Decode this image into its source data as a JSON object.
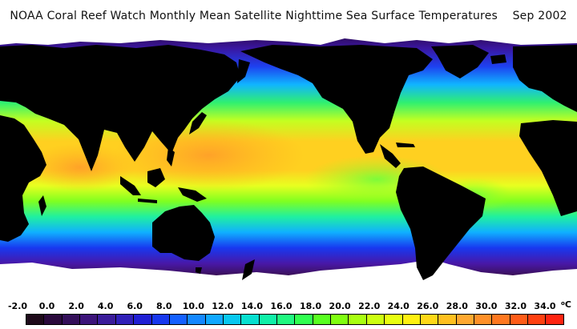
{
  "title": "NOAA Coral Reef Watch Monthly Mean Satellite Nighttime Sea Surface Temperatures    Sep 2002",
  "map": {
    "product": "Monthly Mean Nighttime SST",
    "month": "Sep 2002",
    "land_color": "#000000",
    "ice_color": "#ffffff"
  },
  "scale": {
    "tick_labels": [
      "-2.0",
      "0.0",
      "2.0",
      "4.0",
      "6.0",
      "8.0",
      "10.0",
      "12.0",
      "14.0",
      "16.0",
      "18.0",
      "20.0",
      "22.0",
      "24.0",
      "26.0",
      "28.0",
      "30.0",
      "32.0",
      "34.0"
    ],
    "unit_degree": "o",
    "unit_letter": "C",
    "colors": [
      "#1e0a1a",
      "#2a0a3c",
      "#34105a",
      "#3c147a",
      "#3a1c9a",
      "#3020b8",
      "#2020d4",
      "#1838ee",
      "#1460ff",
      "#1488ff",
      "#10a8ff",
      "#08c8f0",
      "#08e0d0",
      "#10f0a8",
      "#20f880",
      "#30ff50",
      "#58ff20",
      "#80ff10",
      "#a8ff10",
      "#ccff10",
      "#e8ff10",
      "#fff010",
      "#ffd818",
      "#ffc020",
      "#ffa830",
      "#ff9028",
      "#ff7820",
      "#ff5c18",
      "#ff4010",
      "#ff2410"
    ]
  }
}
